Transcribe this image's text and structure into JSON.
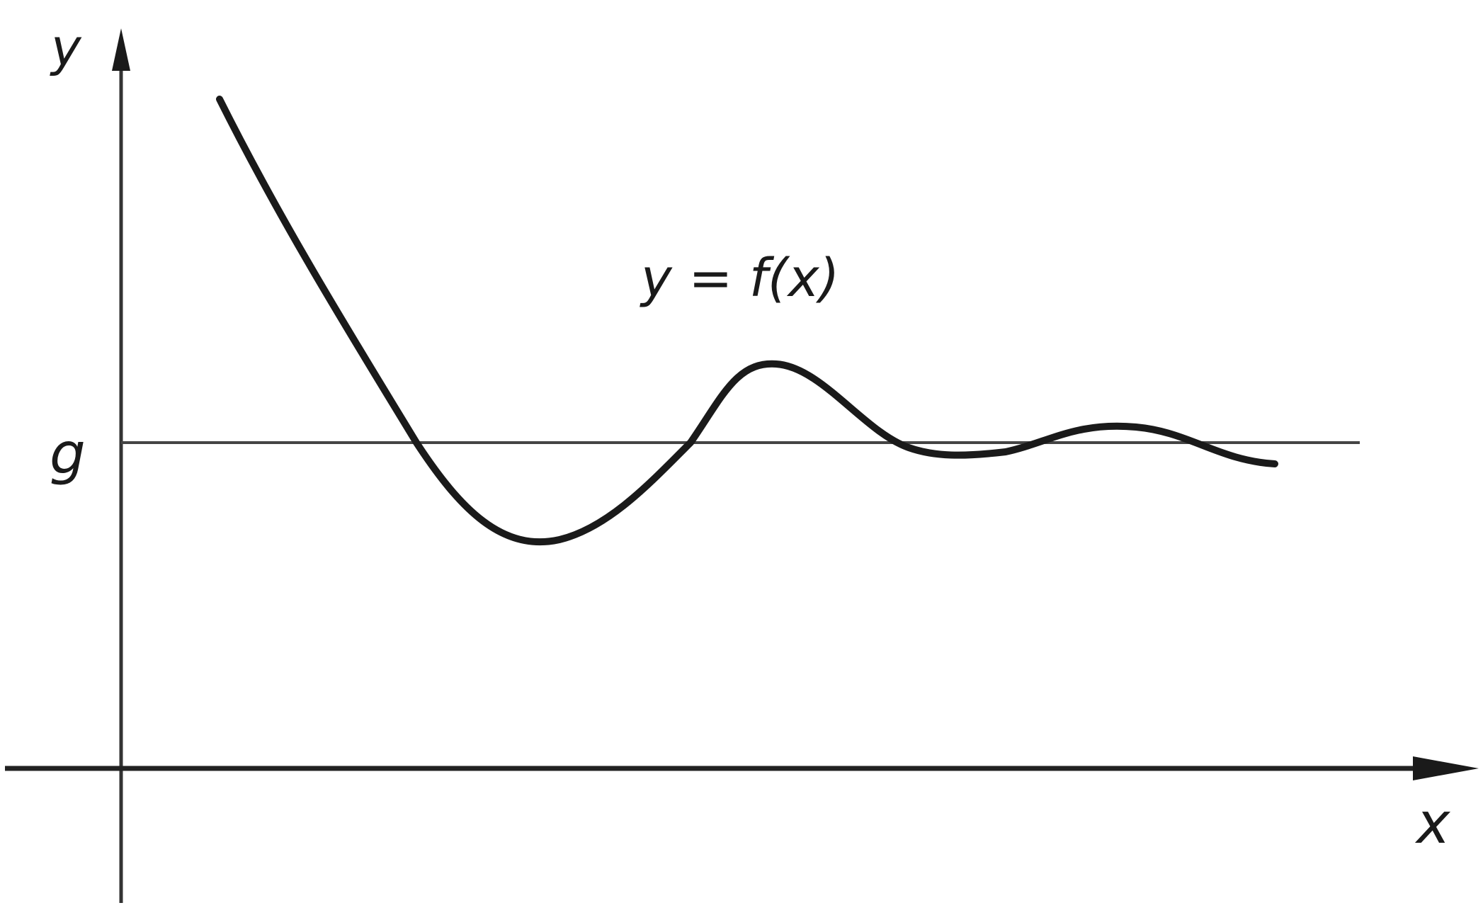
{
  "axes": {
    "y_label": "y",
    "x_label": "x"
  },
  "asymptote": {
    "label": "g"
  },
  "curve": {
    "label": "y = f(x)"
  },
  "colors": {
    "ink": "#1a1a1a",
    "background": "#ffffff"
  }
}
